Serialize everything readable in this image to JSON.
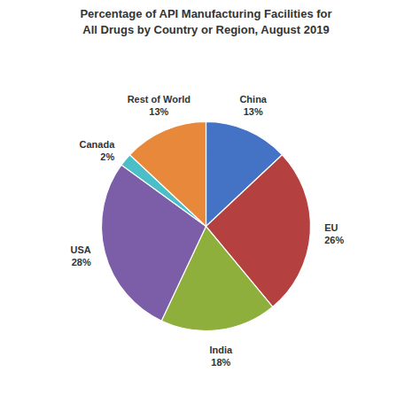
{
  "chart_data": {
    "type": "pie",
    "title": "Percentage of API Manufacturing Facilities for\nAll Drugs by Country or Region, August 2019",
    "categories": [
      "China",
      "EU",
      "India",
      "USA",
      "Canada",
      "Rest of World"
    ],
    "values": [
      13,
      26,
      18,
      28,
      2,
      13
    ],
    "value_labels": [
      "13%",
      "26%",
      "18%",
      "28%",
      "2%",
      "13%"
    ],
    "colors": [
      "#4472C4",
      "#B44040",
      "#8FAF3C",
      "#7B5EA7",
      "#4BBEC8",
      "#E8883A"
    ]
  }
}
